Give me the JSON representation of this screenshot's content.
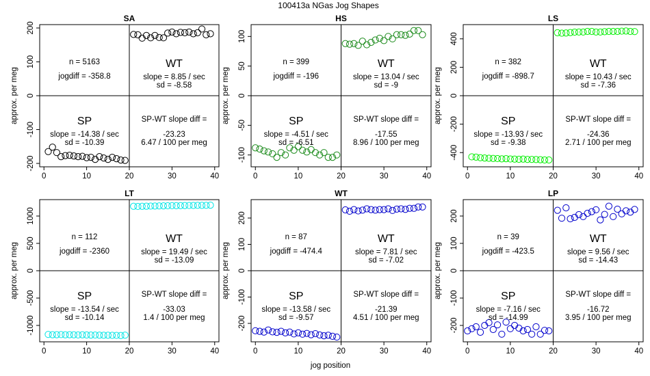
{
  "figure": {
    "title": "100413a   NGas Jog Shapes",
    "xlabel": "jog position",
    "ylabel": "approx. per meg"
  },
  "colors": {
    "frame": "#000000",
    "SA": "#000000",
    "HS": "#1a8a1a",
    "LS": "#00ee00",
    "LT": "#00e5e5",
    "WT": "#0000cc",
    "LP": "#0000cc"
  },
  "chart_data": [
    {
      "type": "scatter",
      "title": "SA",
      "xlim": [
        -1,
        41
      ],
      "ylim": [
        -210,
        210
      ],
      "xticks": [
        0,
        10,
        20,
        30,
        40
      ],
      "yticks": [
        -200,
        -100,
        0,
        100,
        200
      ],
      "x_divider": 20,
      "y_divider": 0,
      "series": [
        {
          "name": "SP",
          "x": [
            1,
            2,
            3,
            4,
            5,
            6,
            7,
            8,
            9,
            10,
            11,
            12,
            13,
            14,
            15,
            16,
            17,
            18,
            19
          ],
          "y": [
            -165,
            -152,
            -168,
            -180,
            -177,
            -176,
            -178,
            -180,
            -179,
            -183,
            -182,
            -188,
            -180,
            -184,
            -188,
            -182,
            -186,
            -190,
            -191
          ]
        },
        {
          "name": "WT",
          "x": [
            21,
            22,
            23,
            24,
            25,
            26,
            27,
            28,
            29,
            30,
            31,
            32,
            33,
            34,
            35,
            36,
            37,
            38,
            39
          ],
          "y": [
            181,
            180,
            170,
            178,
            171,
            178,
            172,
            171,
            185,
            188,
            183,
            187,
            186,
            188,
            183,
            186,
            197,
            180,
            183
          ]
        }
      ],
      "annotations": {
        "n": "n = 5163",
        "jogdiff": "jogdiff = -358.8",
        "wt_label": "WT",
        "wt_slope": "slope = 8.85 / sec",
        "wt_sd": "sd = -8.58",
        "sp_label": "SP",
        "sp_slope": "slope = -14.38 / sec",
        "sp_sd": "sd = -10.39",
        "diff_label": "SP-WT slope diff =",
        "diff_value": "-23.23",
        "diff_permeg": "6.47 / 100 per meg"
      }
    },
    {
      "type": "scatter",
      "title": "HS",
      "xlim": [
        -1,
        41
      ],
      "ylim": [
        -120,
        120
      ],
      "xticks": [
        0,
        10,
        20,
        30,
        40
      ],
      "yticks": [
        -100,
        -50,
        0,
        50,
        100
      ],
      "x_divider": 20,
      "y_divider": 0,
      "series": [
        {
          "name": "SP",
          "x": [
            0,
            1,
            2,
            3,
            4,
            5,
            6,
            7,
            8,
            9,
            10,
            11,
            12,
            13,
            14,
            15,
            16,
            17,
            18,
            19
          ],
          "y": [
            -88,
            -90,
            -93,
            -95,
            -98,
            -104,
            -96,
            -100,
            -88,
            -92,
            -86,
            -92,
            -95,
            -91,
            -96,
            -100,
            -96,
            -104,
            -104,
            -100
          ]
        },
        {
          "name": "WT",
          "x": [
            21,
            22,
            23,
            24,
            25,
            26,
            27,
            28,
            29,
            30,
            31,
            32,
            33,
            34,
            35,
            36,
            37,
            38,
            39
          ],
          "y": [
            88,
            87,
            88,
            85,
            92,
            86,
            90,
            94,
            97,
            93,
            100,
            96,
            103,
            103,
            102,
            104,
            110,
            110,
            103
          ]
        }
      ],
      "annotations": {
        "n": "n = 399",
        "jogdiff": "jogdiff = -196",
        "wt_label": "WT",
        "wt_slope": "slope = 13.04 / sec",
        "wt_sd": "sd = -9",
        "sp_label": "SP",
        "sp_slope": "slope = -4.51 / sec",
        "sp_sd": "sd = -6.51",
        "diff_label": "SP-WT slope diff =",
        "diff_value": "-17.55",
        "diff_permeg": "8.96 / 100 per meg"
      }
    },
    {
      "type": "scatter",
      "title": "LS",
      "xlim": [
        -1,
        41
      ],
      "ylim": [
        -500,
        500
      ],
      "xticks": [
        0,
        10,
        20,
        30,
        40
      ],
      "yticks": [
        -400,
        -200,
        0,
        200,
        400
      ],
      "x_divider": 20,
      "y_divider": 0,
      "series": [
        {
          "name": "SP",
          "x": [
            1,
            2,
            3,
            4,
            5,
            6,
            7,
            8,
            9,
            10,
            11,
            12,
            13,
            14,
            15,
            16,
            17,
            18,
            19
          ],
          "y": [
            -430,
            -432,
            -436,
            -438,
            -440,
            -441,
            -442,
            -444,
            -443,
            -445,
            -446,
            -447,
            -446,
            -448,
            -448,
            -449,
            -450,
            -452,
            -452
          ]
        },
        {
          "name": "WT",
          "x": [
            21,
            22,
            23,
            24,
            25,
            26,
            27,
            28,
            29,
            30,
            31,
            32,
            33,
            34,
            35,
            36,
            37,
            38,
            39
          ],
          "y": [
            443,
            440,
            441,
            444,
            447,
            448,
            448,
            452,
            452,
            448,
            448,
            450,
            452,
            452,
            452,
            454,
            455,
            452,
            451
          ]
        }
      ],
      "annotations": {
        "n": "n = 382",
        "jogdiff": "jogdiff = -898.7",
        "wt_label": "WT",
        "wt_slope": "slope = 10.43 / sec",
        "wt_sd": "sd = -7.36",
        "sp_label": "SP",
        "sp_slope": "slope = -13.93 / sec",
        "sp_sd": "sd = -9.38",
        "diff_label": "SP-WT slope diff =",
        "diff_value": "-24.36",
        "diff_permeg": "2.71 / 100 per meg"
      }
    },
    {
      "type": "scatter",
      "title": "LT",
      "xlim": [
        -1,
        41
      ],
      "ylim": [
        -1300,
        1300
      ],
      "xticks": [
        0,
        10,
        20,
        30,
        40
      ],
      "yticks": [
        -1000,
        -500,
        0,
        500,
        1000
      ],
      "x_divider": 20,
      "y_divider": 0,
      "series": [
        {
          "name": "SP",
          "x": [
            1,
            2,
            3,
            4,
            5,
            6,
            7,
            8,
            9,
            10,
            11,
            12,
            13,
            14,
            15,
            16,
            17,
            18,
            19
          ],
          "y": [
            -1165,
            -1170,
            -1170,
            -1168,
            -1172,
            -1170,
            -1172,
            -1174,
            -1172,
            -1175,
            -1177,
            -1176,
            -1178,
            -1180,
            -1180,
            -1181,
            -1182,
            -1184,
            -1178
          ]
        },
        {
          "name": "WT",
          "x": [
            21,
            22,
            23,
            24,
            25,
            26,
            27,
            28,
            29,
            30,
            31,
            32,
            33,
            34,
            35,
            36,
            37,
            38,
            39
          ],
          "y": [
            1178,
            1176,
            1178,
            1180,
            1182,
            1183,
            1185,
            1186,
            1188,
            1190,
            1189,
            1191,
            1192,
            1193,
            1194,
            1196,
            1195,
            1196,
            1198
          ]
        }
      ],
      "annotations": {
        "n": "n = 112",
        "jogdiff": "jogdiff = -2360",
        "wt_label": "WT",
        "wt_slope": "slope = 19.49 / sec",
        "wt_sd": "sd = -13.09",
        "sp_label": "SP",
        "sp_slope": "slope = -13.54 / sec",
        "sp_sd": "sd = -10.14",
        "diff_label": "SP-WT slope diff =",
        "diff_value": "-33.03",
        "diff_permeg": "1.4 / 100 per meg"
      }
    },
    {
      "type": "scatter",
      "title": "WT",
      "xlim": [
        -1,
        41
      ],
      "ylim": [
        -270,
        270
      ],
      "xticks": [
        0,
        10,
        20,
        30,
        40
      ],
      "yticks": [
        -200,
        -100,
        0,
        100,
        200
      ],
      "x_divider": 20,
      "y_divider": 0,
      "series": [
        {
          "name": "SP",
          "x": [
            0,
            1,
            2,
            3,
            4,
            5,
            6,
            7,
            8,
            9,
            10,
            11,
            12,
            13,
            14,
            15,
            16,
            17,
            18,
            19
          ],
          "y": [
            -228,
            -230,
            -233,
            -225,
            -232,
            -234,
            -230,
            -236,
            -233,
            -240,
            -236,
            -241,
            -238,
            -243,
            -239,
            -244,
            -247,
            -245,
            -249,
            -252
          ]
        },
        {
          "name": "WT",
          "x": [
            21,
            22,
            23,
            24,
            25,
            26,
            27,
            28,
            29,
            30,
            31,
            32,
            33,
            34,
            35,
            36,
            37,
            38,
            39
          ],
          "y": [
            231,
            226,
            232,
            227,
            230,
            235,
            232,
            230,
            232,
            232,
            235,
            229,
            234,
            235,
            233,
            237,
            237,
            242,
            242
          ]
        }
      ],
      "annotations": {
        "n": "n = 87",
        "jogdiff": "jogdiff = -474.4",
        "wt_label": "WT",
        "wt_slope": "slope = 7.81 / sec",
        "wt_sd": "sd = -7.02",
        "sp_label": "SP",
        "sp_slope": "slope = -13.58 / sec",
        "sp_sd": "sd = -9.57",
        "diff_label": "SP-WT slope diff =",
        "diff_value": "-21.39",
        "diff_permeg": "4.51 / 100 per meg"
      }
    },
    {
      "type": "scatter",
      "title": "LP",
      "xlim": [
        -1,
        41
      ],
      "ylim": [
        -260,
        260
      ],
      "xticks": [
        0,
        10,
        20,
        30,
        40
      ],
      "yticks": [
        -200,
        -100,
        0,
        100,
        200
      ],
      "x_divider": 20,
      "y_divider": 0,
      "series": [
        {
          "name": "SP",
          "x": [
            0,
            1,
            2,
            3,
            4,
            5,
            6,
            7,
            8,
            9,
            10,
            11,
            12,
            13,
            14,
            15,
            16,
            17,
            18,
            19
          ],
          "y": [
            -220,
            -212,
            -205,
            -225,
            -200,
            -190,
            -215,
            -198,
            -232,
            -188,
            -212,
            -200,
            -210,
            -220,
            -215,
            -232,
            -205,
            -232,
            -218,
            -220
          ]
        },
        {
          "name": "WT",
          "x": [
            21,
            22,
            23,
            24,
            25,
            26,
            27,
            28,
            29,
            30,
            31,
            32,
            33,
            34,
            35,
            36,
            37,
            38,
            39
          ],
          "y": [
            221,
            192,
            230,
            190,
            195,
            205,
            198,
            210,
            216,
            223,
            186,
            206,
            236,
            198,
            225,
            208,
            219,
            214,
            224
          ]
        }
      ],
      "annotations": {
        "n": "n = 39",
        "jogdiff": "jogdiff = -423.5",
        "wt_label": "WT",
        "wt_slope": "slope = 9.56 / sec",
        "wt_sd": "sd = -14.43",
        "sp_label": "SP",
        "sp_slope": "slope = -7.16 / sec",
        "sp_sd": "sd = -14.99",
        "diff_label": "SP-WT slope diff =",
        "diff_value": "-16.72",
        "diff_permeg": "3.95 / 100 per meg"
      }
    }
  ]
}
